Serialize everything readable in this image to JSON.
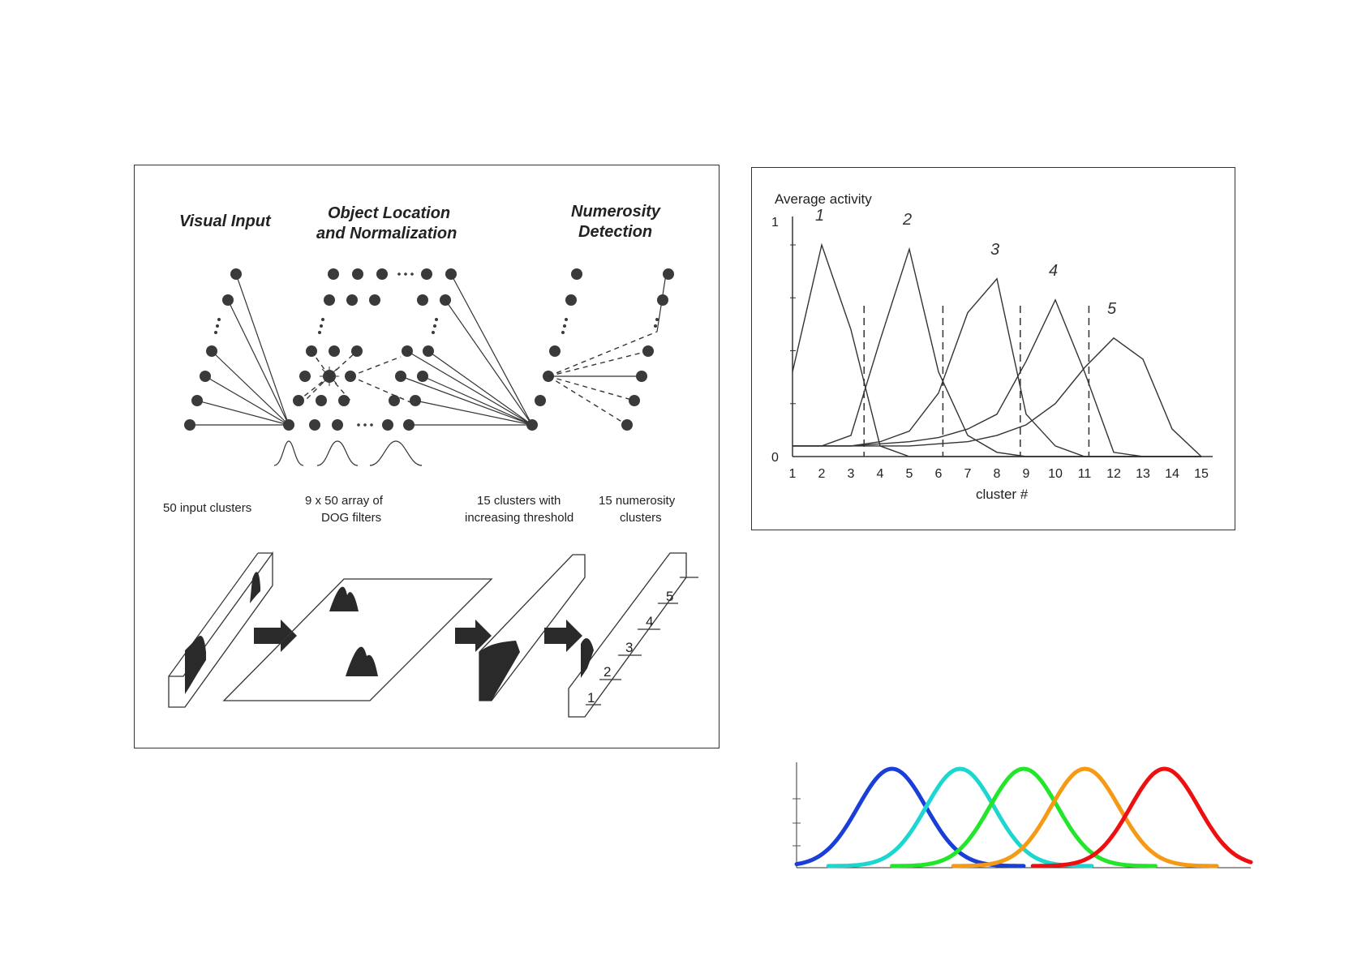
{
  "model": {
    "stages": [
      "Visual Input",
      "Object Location",
      "and Normalization",
      "Numerosity",
      "Detection"
    ],
    "captions": [
      "50 input clusters",
      "9 x 50 array of",
      "DOG filters",
      "15 clusters with",
      "increasing threshold",
      "15 numerosity",
      "clusters"
    ],
    "numerosity_marks": [
      "1",
      "2",
      "3",
      "4",
      "5"
    ]
  },
  "chart_data": [
    {
      "type": "line",
      "title": "Average activity",
      "xlabel": "cluster #",
      "ylabel": "",
      "x": [
        1,
        2,
        3,
        4,
        5,
        6,
        7,
        8,
        9,
        10,
        11,
        12,
        13,
        14,
        15
      ],
      "xlim": [
        1,
        15
      ],
      "ylim": [
        0,
        1
      ],
      "ytick_labels": [
        "1",
        "0"
      ],
      "series": [
        {
          "name": "1",
          "values": [
            0.4,
            1.0,
            0.6,
            0.05,
            0.0,
            0.0,
            0.0,
            0.0,
            0.0,
            0.0,
            0.0,
            0.0,
            0.0,
            0.0,
            0.0
          ]
        },
        {
          "name": "2",
          "values": [
            0.05,
            0.05,
            0.1,
            0.55,
            0.98,
            0.4,
            0.1,
            0.02,
            0.0,
            0.0,
            0.0,
            0.0,
            0.0,
            0.0,
            0.0
          ]
        },
        {
          "name": "3",
          "values": [
            0.05,
            0.05,
            0.05,
            0.07,
            0.12,
            0.3,
            0.68,
            0.84,
            0.2,
            0.05,
            0.0,
            0.0,
            0.0,
            0.0,
            0.0
          ]
        },
        {
          "name": "4",
          "values": [
            0.05,
            0.05,
            0.05,
            0.06,
            0.07,
            0.09,
            0.13,
            0.2,
            0.45,
            0.74,
            0.4,
            0.02,
            0.0,
            0.0,
            0.0
          ]
        },
        {
          "name": "5",
          "values": [
            0.05,
            0.05,
            0.05,
            0.05,
            0.05,
            0.06,
            0.07,
            0.1,
            0.15,
            0.25,
            0.42,
            0.56,
            0.46,
            0.13,
            0.0
          ]
        }
      ],
      "boundaries": [
        3.45,
        6.15,
        8.8,
        11.15
      ],
      "grid": false
    },
    {
      "type": "line",
      "title": "",
      "xlabel": "",
      "ylabel": "",
      "grid": false,
      "curve": "gaussian",
      "series": [
        {
          "mean": 0.21,
          "sd": 0.075,
          "color": "#1a3fd8"
        },
        {
          "mean": 0.36,
          "sd": 0.075,
          "color": "#1ed6d0"
        },
        {
          "mean": 0.5,
          "sd": 0.075,
          "color": "#22e62a"
        },
        {
          "mean": 0.635,
          "sd": 0.075,
          "color": "#f59a16"
        },
        {
          "mean": 0.81,
          "sd": 0.075,
          "color": "#ee1010"
        }
      ]
    }
  ]
}
